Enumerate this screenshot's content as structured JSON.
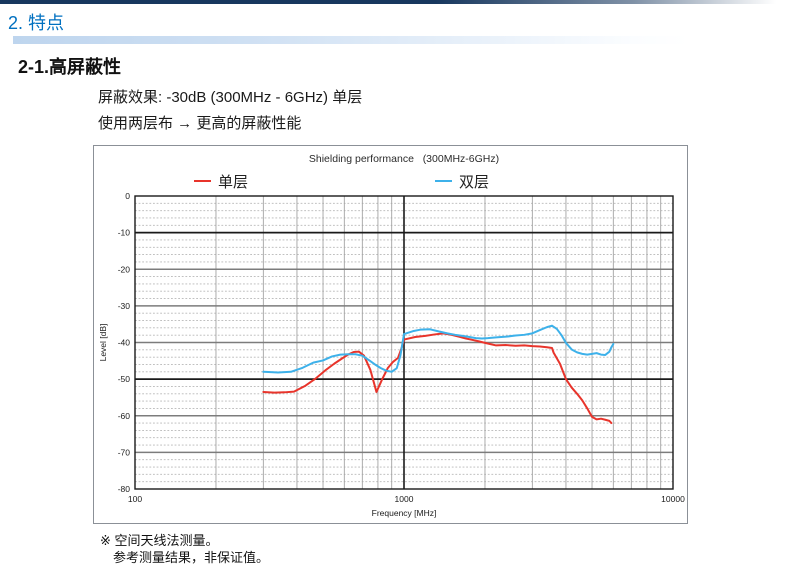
{
  "page": {
    "section_title": "2. 特点",
    "heading": "2-1.高屏蔽性",
    "body_line_1": "屏蔽效果: -30dB (300MHz - 6GHz) 单层",
    "body_line_2": "使用两层布 → 更高的屏蔽性能",
    "note_line_1": "※ 空间天线法测量。",
    "note_line_2": "参考测量结果，非保证值。",
    "colors": {
      "top_bar": "#17375e",
      "section_title": "#0070c0",
      "accent_strip": "#c3d8ef"
    }
  },
  "chart_data": {
    "type": "line",
    "title": "Shielding performance   (300MHz-6GHz)",
    "xlabel": "Frequency [MHz]",
    "ylabel": "Level [dB]",
    "x_scale": "log",
    "xlim": [
      100,
      10000
    ],
    "ylim": [
      -80,
      0
    ],
    "x_tick_labels": [
      "100",
      "1000",
      "10000"
    ],
    "y_major_step": 10,
    "y_minor_step": 2,
    "grid": "major solid + minor dashed, log minor verticals",
    "legend_position": "top",
    "series": [
      {
        "name": "单层",
        "color": "#e8342b",
        "points": [
          [
            300,
            -53.5
          ],
          [
            330,
            -53.7
          ],
          [
            360,
            -53.6
          ],
          [
            390,
            -53.4
          ],
          [
            430,
            -51.8
          ],
          [
            470,
            -49.8
          ],
          [
            510,
            -47.6
          ],
          [
            550,
            -45.8
          ],
          [
            590,
            -44.3
          ],
          [
            620,
            -43.3
          ],
          [
            650,
            -42.6
          ],
          [
            680,
            -42.5
          ],
          [
            710,
            -43.6
          ],
          [
            750,
            -47.5
          ],
          [
            790,
            -53.5
          ],
          [
            830,
            -50.0
          ],
          [
            870,
            -47.0
          ],
          [
            910,
            -45.3
          ],
          [
            950,
            -44.2
          ],
          [
            980,
            -41.5
          ],
          [
            1000,
            -39.2
          ],
          [
            1100,
            -38.5
          ],
          [
            1200,
            -38.2
          ],
          [
            1300,
            -37.8
          ],
          [
            1400,
            -37.5
          ],
          [
            1500,
            -37.9
          ],
          [
            1600,
            -38.4
          ],
          [
            1700,
            -38.9
          ],
          [
            1800,
            -39.3
          ],
          [
            1900,
            -39.7
          ],
          [
            2000,
            -40.1
          ],
          [
            2200,
            -40.8
          ],
          [
            2400,
            -40.7
          ],
          [
            2600,
            -40.9
          ],
          [
            2800,
            -40.8
          ],
          [
            3000,
            -41.0
          ],
          [
            3200,
            -41.1
          ],
          [
            3400,
            -41.3
          ],
          [
            3550,
            -41.5
          ],
          [
            3600,
            -42.8
          ],
          [
            3800,
            -45.8
          ],
          [
            4000,
            -50.0
          ],
          [
            4200,
            -52.3
          ],
          [
            4400,
            -54.0
          ],
          [
            4600,
            -55.8
          ],
          [
            4800,
            -58.0
          ],
          [
            5000,
            -60.3
          ],
          [
            5200,
            -61.0
          ],
          [
            5400,
            -60.8
          ],
          [
            5600,
            -61.1
          ],
          [
            5800,
            -61.4
          ],
          [
            5900,
            -62.0
          ]
        ]
      },
      {
        "name": "双层",
        "color": "#3db1ea",
        "points": [
          [
            300,
            -48.0
          ],
          [
            340,
            -48.2
          ],
          [
            380,
            -48.0
          ],
          [
            420,
            -46.9
          ],
          [
            460,
            -45.5
          ],
          [
            500,
            -44.9
          ],
          [
            540,
            -43.8
          ],
          [
            580,
            -43.3
          ],
          [
            620,
            -43.2
          ],
          [
            660,
            -43.2
          ],
          [
            700,
            -43.6
          ],
          [
            740,
            -44.8
          ],
          [
            780,
            -46.0
          ],
          [
            820,
            -47.0
          ],
          [
            860,
            -47.7
          ],
          [
            900,
            -48.0
          ],
          [
            940,
            -47.0
          ],
          [
            970,
            -43.5
          ],
          [
            1000,
            -37.7
          ],
          [
            1080,
            -36.9
          ],
          [
            1150,
            -36.5
          ],
          [
            1250,
            -36.4
          ],
          [
            1350,
            -37.0
          ],
          [
            1450,
            -37.5
          ],
          [
            1550,
            -37.9
          ],
          [
            1650,
            -38.2
          ],
          [
            1750,
            -38.5
          ],
          [
            1850,
            -38.8
          ],
          [
            1950,
            -38.9
          ],
          [
            2050,
            -38.8
          ],
          [
            2200,
            -38.6
          ],
          [
            2400,
            -38.4
          ],
          [
            2600,
            -38.1
          ],
          [
            2800,
            -37.9
          ],
          [
            3000,
            -37.5
          ],
          [
            3200,
            -36.6
          ],
          [
            3400,
            -35.8
          ],
          [
            3550,
            -35.4
          ],
          [
            3700,
            -36.3
          ],
          [
            3850,
            -38.0
          ],
          [
            4000,
            -40.1
          ],
          [
            4200,
            -41.9
          ],
          [
            4400,
            -42.7
          ],
          [
            4600,
            -43.1
          ],
          [
            4800,
            -43.3
          ],
          [
            5000,
            -43.1
          ],
          [
            5200,
            -42.9
          ],
          [
            5400,
            -43.3
          ],
          [
            5600,
            -43.4
          ],
          [
            5800,
            -42.5
          ],
          [
            5900,
            -41.3
          ],
          [
            6000,
            -40.4
          ]
        ]
      }
    ]
  }
}
